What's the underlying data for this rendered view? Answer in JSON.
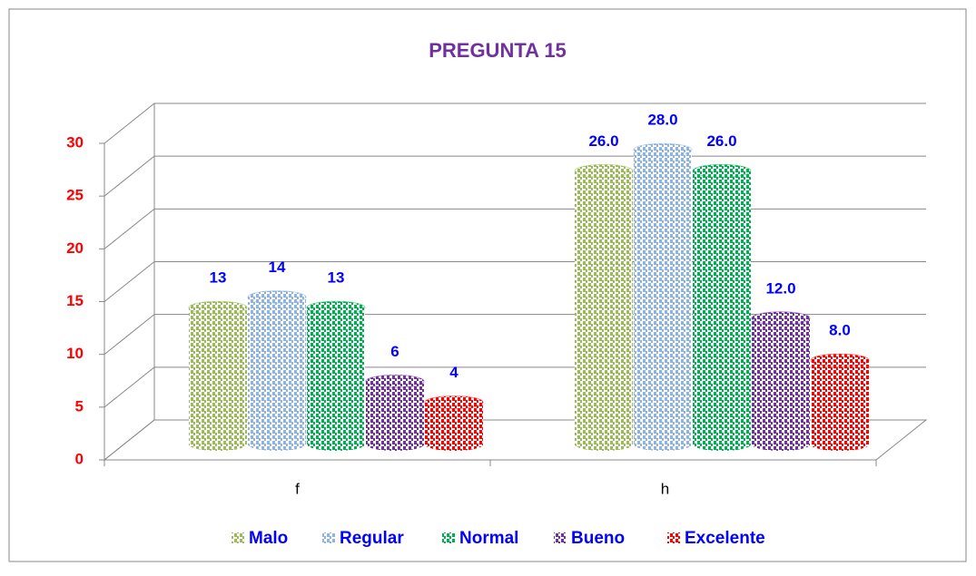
{
  "chart_data": {
    "type": "bar",
    "title": "PREGUNTA 15",
    "categories": [
      "f",
      "h"
    ],
    "series": [
      {
        "name": "Malo",
        "color": "#9bbb59",
        "values": [
          13,
          26
        ],
        "value_labels": [
          "13",
          "26.0"
        ]
      },
      {
        "name": "Regular",
        "color": "#8db3e2",
        "values": [
          14,
          28
        ],
        "value_labels": [
          "14",
          "28.0"
        ]
      },
      {
        "name": "Normal",
        "color": "#00b050",
        "values": [
          13,
          26
        ],
        "value_labels": [
          "13",
          "26.0"
        ]
      },
      {
        "name": "Bueno",
        "color": "#7030a0",
        "values": [
          6,
          12
        ],
        "value_labels": [
          "6",
          "12.0"
        ]
      },
      {
        "name": "Excelente",
        "color": "#ff0000",
        "values": [
          4,
          8
        ],
        "value_labels": [
          "4",
          "8.0"
        ]
      }
    ],
    "ylim": [
      0,
      30
    ],
    "yticks": [
      0,
      5,
      10,
      15,
      20,
      25,
      30
    ],
    "grid": true,
    "legend": "bottom"
  }
}
